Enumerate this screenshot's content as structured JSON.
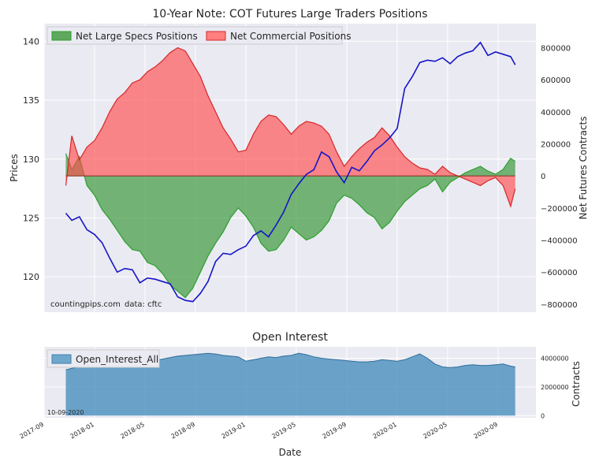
{
  "chart_data": [
    {
      "type": "line+area",
      "title": "10-Year Note: COT Futures Large Traders Positions",
      "xlabel": "",
      "ylabel_left": "Prices",
      "ylabel_right": "Net Futures Contracts",
      "ylim_left": [
        117,
        141.5
      ],
      "ylim_right": [
        -850000,
        950000
      ],
      "yticks_left": [
        120,
        125,
        130,
        135,
        140
      ],
      "yticks_right": [
        -800000,
        -600000,
        -400000,
        -200000,
        0,
        200000,
        400000,
        600000,
        800000
      ],
      "ytick_labels_right": [
        "−800000",
        "−600000",
        "−400000",
        "−200000",
        "0",
        "200000",
        "400000",
        "600000",
        "800000"
      ],
      "legend_position": "top-left",
      "annotation_left": "countingpips.com",
      "annotation_right": "data: cftc",
      "series": [
        {
          "name": "Price",
          "axis": "left",
          "color": "#1515c8",
          "x": [
            2017.81,
            2017.85,
            2017.9,
            2017.95,
            2018.0,
            2018.05,
            2018.1,
            2018.15,
            2018.2,
            2018.25,
            2018.3,
            2018.35,
            2018.4,
            2018.45,
            2018.5,
            2018.55,
            2018.6,
            2018.65,
            2018.7,
            2018.75,
            2018.8,
            2018.85,
            2018.9,
            2018.95,
            2019.0,
            2019.05,
            2019.1,
            2019.15,
            2019.2,
            2019.25,
            2019.3,
            2019.35,
            2019.4,
            2019.45,
            2019.5,
            2019.55,
            2019.6,
            2019.65,
            2019.7,
            2019.75,
            2019.8,
            2019.85,
            2019.9,
            2019.95,
            2020.0,
            2020.05,
            2020.1,
            2020.15,
            2020.2,
            2020.25,
            2020.3,
            2020.35,
            2020.4,
            2020.45,
            2020.5,
            2020.55,
            2020.6,
            2020.65,
            2020.7,
            2020.75,
            2020.78
          ],
          "values": [
            125.4,
            124.8,
            125.1,
            124.0,
            123.6,
            122.9,
            121.6,
            120.4,
            120.7,
            120.6,
            119.5,
            119.9,
            119.8,
            119.6,
            119.4,
            118.3,
            118.0,
            117.9,
            118.6,
            119.6,
            121.3,
            122.0,
            121.9,
            122.3,
            122.6,
            123.5,
            123.9,
            123.4,
            124.4,
            125.5,
            127.0,
            127.9,
            128.7,
            129.1,
            130.6,
            130.2,
            128.9,
            128.0,
            129.3,
            129.0,
            129.8,
            130.7,
            131.2,
            131.8,
            132.6,
            136.0,
            137.0,
            138.2,
            138.4,
            138.3,
            138.6,
            138.1,
            138.7,
            139.0,
            139.2,
            139.9,
            138.8,
            139.1,
            138.9,
            138.7,
            138.0
          ]
        },
        {
          "name": "Net Large Specs Positions",
          "axis": "right",
          "color": "#2ca02c",
          "x": [
            2017.81,
            2017.85,
            2017.9,
            2017.95,
            2018.0,
            2018.05,
            2018.1,
            2018.15,
            2018.2,
            2018.25,
            2018.3,
            2018.35,
            2018.4,
            2018.45,
            2018.5,
            2018.55,
            2018.6,
            2018.65,
            2018.7,
            2018.75,
            2018.8,
            2018.85,
            2018.9,
            2018.95,
            2019.0,
            2019.05,
            2019.1,
            2019.15,
            2019.2,
            2019.25,
            2019.3,
            2019.35,
            2019.4,
            2019.45,
            2019.5,
            2019.55,
            2019.6,
            2019.65,
            2019.7,
            2019.75,
            2019.8,
            2019.85,
            2019.9,
            2019.95,
            2020.0,
            2020.05,
            2020.1,
            2020.15,
            2020.2,
            2020.25,
            2020.3,
            2020.35,
            2020.4,
            2020.45,
            2020.5,
            2020.55,
            2020.6,
            2020.65,
            2020.7,
            2020.75,
            2020.78
          ],
          "values": [
            140000,
            40000,
            120000,
            -60000,
            -120000,
            -210000,
            -270000,
            -340000,
            -410000,
            -460000,
            -470000,
            -540000,
            -560000,
            -610000,
            -680000,
            -720000,
            -760000,
            -700000,
            -600000,
            -500000,
            -420000,
            -350000,
            -260000,
            -200000,
            -250000,
            -320000,
            -420000,
            -470000,
            -460000,
            -400000,
            -320000,
            -360000,
            -400000,
            -380000,
            -340000,
            -280000,
            -170000,
            -120000,
            -140000,
            -180000,
            -230000,
            -260000,
            -330000,
            -290000,
            -220000,
            -160000,
            -120000,
            -80000,
            -60000,
            -20000,
            -100000,
            -40000,
            -10000,
            20000,
            40000,
            60000,
            30000,
            10000,
            40000,
            110000,
            90000
          ]
        },
        {
          "name": "Net Commercial Positions",
          "axis": "right",
          "color": "#ff5b5b",
          "x": [
            2017.81,
            2017.85,
            2017.9,
            2017.95,
            2018.0,
            2018.05,
            2018.1,
            2018.15,
            2018.2,
            2018.25,
            2018.3,
            2018.35,
            2018.4,
            2018.45,
            2018.5,
            2018.55,
            2018.6,
            2018.65,
            2018.7,
            2018.75,
            2018.8,
            2018.85,
            2018.9,
            2018.95,
            2019.0,
            2019.05,
            2019.1,
            2019.15,
            2019.2,
            2019.25,
            2019.3,
            2019.35,
            2019.4,
            2019.45,
            2019.5,
            2019.55,
            2019.6,
            2019.65,
            2019.7,
            2019.75,
            2019.8,
            2019.85,
            2019.9,
            2019.95,
            2020.0,
            2020.05,
            2020.1,
            2020.15,
            2020.2,
            2020.25,
            2020.3,
            2020.35,
            2020.4,
            2020.45,
            2020.5,
            2020.55,
            2020.6,
            2020.65,
            2020.7,
            2020.75,
            2020.78
          ],
          "values": [
            -60000,
            250000,
            100000,
            180000,
            220000,
            300000,
            400000,
            480000,
            520000,
            580000,
            600000,
            650000,
            680000,
            720000,
            770000,
            800000,
            780000,
            700000,
            620000,
            500000,
            400000,
            300000,
            230000,
            150000,
            160000,
            260000,
            340000,
            380000,
            370000,
            320000,
            260000,
            310000,
            340000,
            330000,
            310000,
            260000,
            150000,
            60000,
            120000,
            170000,
            210000,
            240000,
            300000,
            250000,
            180000,
            120000,
            80000,
            50000,
            40000,
            10000,
            60000,
            20000,
            0,
            -20000,
            -40000,
            -60000,
            -30000,
            -10000,
            -60000,
            -190000,
            -80000
          ]
        }
      ]
    },
    {
      "type": "area",
      "title": "Open Interest",
      "xlabel": "Date",
      "ylabel": "Contracts",
      "ylim": [
        -150000,
        4800000
      ],
      "yticks": [
        0,
        2000000,
        4000000
      ],
      "legend_position": "top-left",
      "annotation": "10-09-2020",
      "series": [
        {
          "name": "Open_Interest_All",
          "color": "#5b9bc4",
          "x": [
            2017.81,
            2017.85,
            2017.9,
            2017.95,
            2018.0,
            2018.05,
            2018.1,
            2018.15,
            2018.2,
            2018.25,
            2018.3,
            2018.35,
            2018.4,
            2018.45,
            2018.5,
            2018.55,
            2018.6,
            2018.65,
            2018.7,
            2018.75,
            2018.8,
            2018.85,
            2018.9,
            2018.95,
            2019.0,
            2019.05,
            2019.1,
            2019.15,
            2019.2,
            2019.25,
            2019.3,
            2019.35,
            2019.4,
            2019.45,
            2019.5,
            2019.55,
            2019.6,
            2019.65,
            2019.7,
            2019.75,
            2019.8,
            2019.85,
            2019.9,
            2019.95,
            2020.0,
            2020.05,
            2020.1,
            2020.15,
            2020.2,
            2020.25,
            2020.3,
            2020.35,
            2020.4,
            2020.45,
            2020.5,
            2020.55,
            2020.6,
            2020.65,
            2020.7,
            2020.75,
            2020.78
          ],
          "values": [
            3200000,
            3300000,
            3400000,
            3500000,
            3650000,
            3750000,
            3850000,
            3900000,
            4000000,
            3950000,
            4050000,
            3900000,
            3850000,
            3950000,
            4050000,
            4150000,
            4200000,
            4250000,
            4300000,
            4350000,
            4300000,
            4200000,
            4150000,
            4100000,
            3800000,
            3900000,
            4000000,
            4100000,
            4050000,
            4150000,
            4200000,
            4350000,
            4250000,
            4100000,
            4000000,
            3950000,
            3900000,
            3850000,
            3800000,
            3750000,
            3750000,
            3800000,
            3900000,
            3850000,
            3800000,
            3900000,
            4100000,
            4300000,
            4000000,
            3600000,
            3400000,
            3350000,
            3400000,
            3500000,
            3550000,
            3500000,
            3500000,
            3550000,
            3600000,
            3450000,
            3400000
          ]
        }
      ],
      "xticks": [
        2017.667,
        2018.0,
        2018.333,
        2018.667,
        2019.0,
        2019.333,
        2019.667,
        2020.0,
        2020.333,
        2020.667
      ],
      "xtick_labels": [
        "2017-09",
        "2018-01",
        "2018-05",
        "2018-09",
        "2019-01",
        "2019-05",
        "2019-09",
        "2020-01",
        "2020-05",
        "2020-09"
      ]
    }
  ]
}
